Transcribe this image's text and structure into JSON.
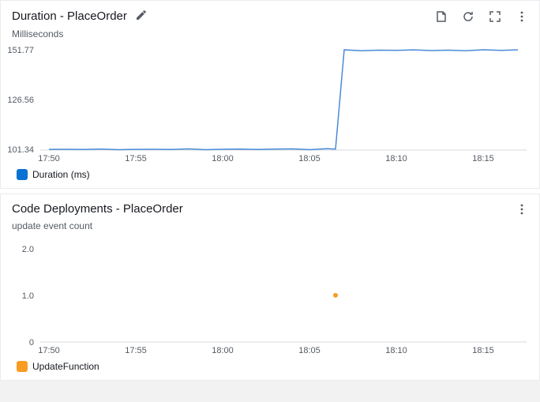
{
  "duration_chart": {
    "title": "Duration - PlaceOrder",
    "subtitle": "Milliseconds",
    "type": "line",
    "series_name": "Duration (ms)",
    "series_color": "#4a8ad8",
    "swatch_color": "#0972d3",
    "line_width": 1.5,
    "background_color": "#ffffff",
    "axis_color": "#d5dbdb",
    "text_color": "#545b64",
    "x_ticks": [
      "17:50",
      "17:55",
      "18:00",
      "18:05",
      "18:10",
      "18:15"
    ],
    "x_positions": [
      0,
      5,
      10,
      15,
      20,
      25
    ],
    "y_ticks": [
      "101.34",
      "126.56",
      "151.77"
    ],
    "y_tick_values": [
      101.34,
      126.56,
      151.77
    ],
    "ylim": [
      101.0,
      153.0
    ],
    "xlim": [
      -0.5,
      27.5
    ],
    "data_x": [
      0,
      1,
      2,
      3,
      4,
      5,
      6,
      7,
      8,
      9,
      10,
      11,
      12,
      13,
      14,
      15,
      16,
      16.5,
      17,
      18,
      19,
      20,
      21,
      22,
      23,
      24,
      25,
      26,
      27
    ],
    "data_y": [
      101.34,
      101.4,
      101.3,
      101.5,
      101.2,
      101.34,
      101.4,
      101.3,
      101.6,
      101.2,
      101.4,
      101.5,
      101.3,
      101.5,
      101.6,
      101.2,
      101.7,
      101.5,
      151.77,
      151.3,
      151.6,
      151.5,
      151.77,
      151.4,
      151.6,
      151.3,
      151.8,
      151.5,
      151.77
    ]
  },
  "deploy_chart": {
    "title": "Code Deployments - PlaceOrder",
    "subtitle": "update event count",
    "type": "scatter",
    "series_name": "UpdateFunction",
    "series_color": "#f89c24",
    "swatch_color": "#f89c24",
    "marker_size": 3,
    "background_color": "#ffffff",
    "axis_color": "#d5dbdb",
    "text_color": "#545b64",
    "x_ticks": [
      "17:50",
      "17:55",
      "18:00",
      "18:05",
      "18:10",
      "18:15"
    ],
    "x_positions": [
      0,
      5,
      10,
      15,
      20,
      25
    ],
    "y_ticks": [
      "0",
      "1.0",
      "2.0"
    ],
    "y_tick_values": [
      0,
      1.0,
      2.0
    ],
    "ylim": [
      0,
      2.2
    ],
    "xlim": [
      -0.5,
      27.5
    ],
    "data_x": [
      16.5
    ],
    "data_y": [
      1.0
    ]
  },
  "icons": {
    "edit": "edit-icon",
    "download": "download-icon",
    "refresh": "refresh-icon",
    "expand": "expand-icon",
    "menu": "menu-icon"
  }
}
